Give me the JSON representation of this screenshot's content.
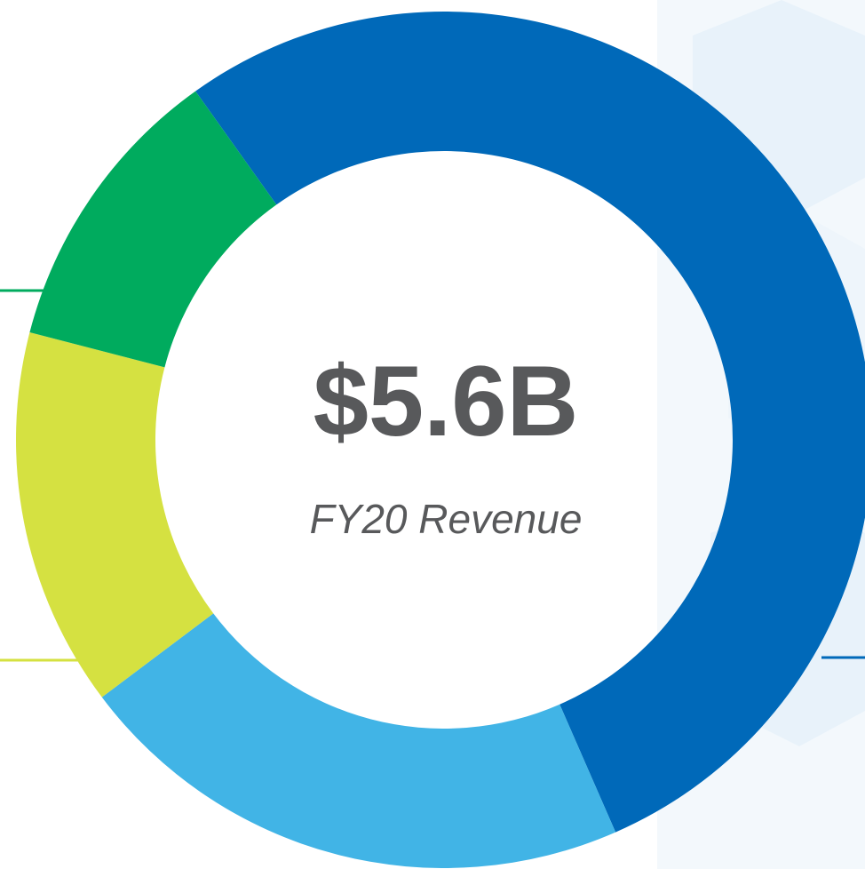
{
  "chart_data": {
    "type": "donut",
    "title": "$5.6B",
    "subtitle": "FY20 Revenue",
    "categories": [
      null,
      null,
      null,
      null
    ],
    "values": [
      53.3,
      21.3,
      14.3,
      11.1
    ],
    "colors": [
      "#0069b9",
      "#41b4e6",
      "#d5e141",
      "#00ab5e"
    ]
  }
}
